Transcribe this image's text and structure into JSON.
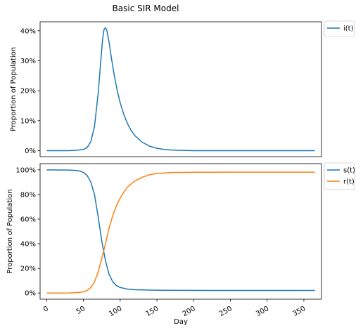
{
  "figure": {
    "title": "Basic SIR Model"
  },
  "chart_data": [
    {
      "type": "line",
      "xlabel": "",
      "ylabel": "Proportion of Population",
      "xlim": [
        -9,
        374
      ],
      "ylim": [
        -0.02,
        0.43
      ],
      "yticks": [
        0,
        0.1,
        0.2,
        0.3,
        0.4
      ],
      "ytick_labels": [
        "0%",
        "10%",
        "20%",
        "30%",
        "40%"
      ],
      "xticks": [],
      "legend": "outside-upper-right",
      "grid": false,
      "series": [
        {
          "name": "i(t)",
          "color": "#1f77b4",
          "x": [
            0,
            30,
            40,
            50,
            55,
            60,
            65,
            70,
            73,
            76,
            78,
            80,
            82,
            85,
            88,
            92,
            96,
            100,
            105,
            110,
            115,
            120,
            130,
            140,
            150,
            160,
            170,
            180,
            200,
            230,
            260,
            300,
            330,
            365
          ],
          "y": [
            0.0,
            0.0,
            0.001,
            0.004,
            0.01,
            0.03,
            0.08,
            0.19,
            0.28,
            0.37,
            0.405,
            0.41,
            0.4,
            0.36,
            0.31,
            0.25,
            0.2,
            0.16,
            0.12,
            0.09,
            0.067,
            0.05,
            0.028,
            0.015,
            0.008,
            0.004,
            0.002,
            0.001,
            0.0,
            0.0,
            0.0,
            0.0,
            0.0,
            0.0
          ]
        }
      ]
    },
    {
      "type": "line",
      "xlabel": "Day",
      "ylabel": "Proportion of Population",
      "xlim": [
        -9,
        374
      ],
      "ylim": [
        -0.05,
        1.05
      ],
      "yticks": [
        0,
        0.2,
        0.4,
        0.6,
        0.8,
        1.0
      ],
      "ytick_labels": [
        "0%",
        "20%",
        "40%",
        "60%",
        "80%",
        "100%"
      ],
      "xticks": [
        0,
        50,
        100,
        150,
        200,
        250,
        300,
        350
      ],
      "xtick_labels": [
        "0",
        "50",
        "100",
        "150",
        "200",
        "250",
        "300",
        "350"
      ],
      "legend": "outside-upper-right",
      "grid": false,
      "series": [
        {
          "name": "s(t)",
          "color": "#1f77b4",
          "x": [
            0,
            30,
            40,
            45,
            50,
            55,
            60,
            65,
            70,
            75,
            80,
            85,
            90,
            95,
            100,
            110,
            120,
            130,
            150,
            180,
            220,
            260,
            300,
            365
          ],
          "y": [
            0.999,
            0.998,
            0.995,
            0.99,
            0.978,
            0.955,
            0.9,
            0.8,
            0.62,
            0.42,
            0.26,
            0.15,
            0.09,
            0.06,
            0.045,
            0.032,
            0.027,
            0.025,
            0.023,
            0.022,
            0.021,
            0.021,
            0.021,
            0.021
          ]
        },
        {
          "name": "r(t)",
          "color": "#ff7f0e",
          "x": [
            0,
            30,
            40,
            50,
            55,
            60,
            65,
            70,
            75,
            80,
            85,
            90,
            95,
            100,
            105,
            110,
            120,
            130,
            140,
            150,
            170,
            200,
            250,
            300,
            365
          ],
          "y": [
            0.0,
            0.001,
            0.003,
            0.01,
            0.02,
            0.045,
            0.09,
            0.17,
            0.28,
            0.4,
            0.53,
            0.63,
            0.71,
            0.77,
            0.82,
            0.86,
            0.91,
            0.94,
            0.96,
            0.97,
            0.978,
            0.98,
            0.981,
            0.981,
            0.981
          ]
        }
      ]
    }
  ]
}
